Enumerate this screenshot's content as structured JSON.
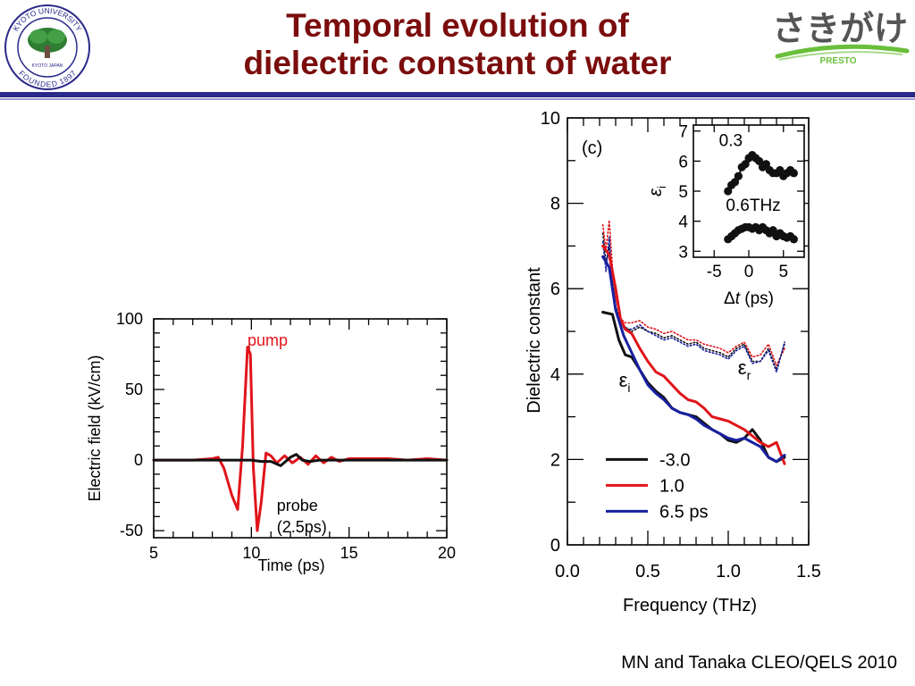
{
  "slide": {
    "title_line1": "Temporal evolution of",
    "title_line2": "dielectric constant of water",
    "citation": "MN and Tanaka CLEO/QELS 2010",
    "title_color": "#7b0d0d",
    "rule_color": "#2a2a8a"
  },
  "logos": {
    "left": {
      "icon": "kyoto-university-seal",
      "ring_text_top": "KYOTO UNIVERSITY",
      "ring_text_bottom": "FOUNDED 1897",
      "center_text": "KYOTO JAPAN",
      "color": "#2a2a8a"
    },
    "right": {
      "icon": "sakigake-presto-logo",
      "wordmark": "さきがけ",
      "tag": "PRESTO",
      "colors": [
        "#555555",
        "#6abf3a"
      ]
    }
  },
  "chart_data": [
    {
      "type": "line",
      "title": "",
      "xlabel": "Time (ps)",
      "ylabel": "Electric field (kV/cm)",
      "xlim": [
        5,
        20
      ],
      "ylim": [
        -55,
        100
      ],
      "xticks": [
        5,
        10,
        15,
        20
      ],
      "yticks": [
        100,
        50,
        0,
        -50
      ],
      "annotations": [
        "pump",
        "probe",
        "(2.5ps)"
      ],
      "series": [
        {
          "name": "pump",
          "color": "#e0141a",
          "x": [
            5.0,
            7.0,
            8.0,
            8.3,
            8.6,
            9.0,
            9.3,
            9.55,
            9.8,
            9.95,
            10.1,
            10.3,
            10.5,
            10.75,
            11.0,
            11.3,
            11.7,
            12.1,
            12.5,
            12.9,
            13.3,
            13.7,
            14.1,
            14.5,
            15.0,
            16.0,
            17.0,
            18.0,
            19.0,
            20.0
          ],
          "values": [
            0,
            0,
            1,
            2,
            -6,
            -25,
            -35,
            10,
            80,
            75,
            -5,
            -50,
            -30,
            5,
            3,
            -2,
            3,
            -2,
            2,
            -3,
            3,
            -2,
            2,
            -1,
            1,
            1,
            1,
            0,
            1,
            0
          ]
        },
        {
          "name": "probe",
          "color": "#111111",
          "x": [
            5.0,
            10.0,
            10.5,
            11.0,
            11.5,
            12.0,
            12.3,
            12.6,
            13.0,
            13.5,
            14.0,
            15.0,
            20.0
          ],
          "values": [
            0,
            0,
            -1,
            -1,
            -4,
            2,
            4,
            0,
            -1,
            0,
            0,
            0,
            0
          ]
        }
      ]
    },
    {
      "type": "line",
      "title": "",
      "panel_label": "(c)",
      "xlabel": "Frequency (THz)",
      "ylabel": "Dielectric constant",
      "xlim": [
        0.0,
        1.5
      ],
      "ylim": [
        0,
        10
      ],
      "xticks": [
        "0.0",
        "0.5",
        "1.0",
        "1.5"
      ],
      "yticks": [
        10,
        8,
        6,
        4,
        2,
        0
      ],
      "legend": {
        "placement": "bottom-left",
        "entries": [
          "-3.0",
          "1.0",
          "6.5 ps"
        ]
      },
      "annotations": {
        "eps_i": "ε",
        "eps_i_sub": "i",
        "eps_r": "ε",
        "eps_r_sub": "r"
      },
      "series": [
        {
          "name": "-3.0",
          "color": "#111111",
          "quantity": "eps_i",
          "x": [
            0.22,
            0.28,
            0.32,
            0.36,
            0.4,
            0.45,
            0.5,
            0.55,
            0.6,
            0.65,
            0.7,
            0.75,
            0.8,
            0.85,
            0.9,
            0.95,
            1.0,
            1.05,
            1.1,
            1.15,
            1.2,
            1.25,
            1.3,
            1.35
          ],
          "values": [
            5.45,
            5.4,
            4.8,
            4.45,
            4.4,
            4.1,
            3.8,
            3.6,
            3.45,
            3.2,
            3.1,
            3.05,
            3.0,
            2.85,
            2.7,
            2.6,
            2.45,
            2.4,
            2.5,
            2.7,
            2.45,
            2.05,
            1.95,
            2.05
          ]
        },
        {
          "name": "1.0",
          "color": "#e0141a",
          "quantity": "eps_i",
          "x": [
            0.22,
            0.26,
            0.3,
            0.33,
            0.36,
            0.4,
            0.45,
            0.5,
            0.55,
            0.6,
            0.65,
            0.7,
            0.75,
            0.8,
            0.85,
            0.9,
            0.95,
            1.0,
            1.05,
            1.1,
            1.15,
            1.2,
            1.25,
            1.3,
            1.35
          ],
          "values": [
            7.0,
            6.8,
            6.0,
            5.3,
            5.05,
            4.95,
            4.6,
            4.3,
            4.05,
            3.95,
            3.75,
            3.55,
            3.4,
            3.35,
            3.2,
            3.0,
            2.95,
            2.9,
            2.8,
            2.7,
            2.55,
            2.4,
            2.3,
            2.4,
            1.9
          ]
        },
        {
          "name": "6.5 ps",
          "color": "#1820a0",
          "quantity": "eps_i",
          "x": [
            0.22,
            0.26,
            0.3,
            0.35,
            0.4,
            0.45,
            0.5,
            0.55,
            0.6,
            0.65,
            0.7,
            0.75,
            0.8,
            0.85,
            0.9,
            0.95,
            1.0,
            1.05,
            1.1,
            1.15,
            1.2,
            1.25,
            1.3,
            1.35
          ],
          "values": [
            6.75,
            6.5,
            5.5,
            4.9,
            4.5,
            4.1,
            3.75,
            3.55,
            3.4,
            3.2,
            3.1,
            3.05,
            2.95,
            2.8,
            2.7,
            2.6,
            2.5,
            2.45,
            2.5,
            2.4,
            2.3,
            2.05,
            1.95,
            2.1
          ]
        },
        {
          "name": "-3.0",
          "color": "#111111",
          "quantity": "eps_r",
          "style": "dotted",
          "x": [
            0.22,
            0.24,
            0.26,
            0.28,
            0.3,
            0.33,
            0.36,
            0.4,
            0.45,
            0.5,
            0.55,
            0.6,
            0.65,
            0.7,
            0.75,
            0.8,
            0.85,
            0.9,
            0.95,
            1.0,
            1.05,
            1.1,
            1.15,
            1.2,
            1.25,
            1.3,
            1.35
          ],
          "values": [
            7.3,
            6.6,
            7.0,
            6.2,
            5.6,
            5.2,
            5.1,
            5.0,
            5.1,
            5.0,
            4.95,
            4.85,
            4.9,
            4.8,
            4.7,
            4.75,
            4.6,
            4.55,
            4.5,
            4.4,
            4.6,
            4.7,
            4.3,
            4.3,
            4.6,
            4.1,
            4.7
          ]
        },
        {
          "name": "1.0",
          "color": "#e0141a",
          "quantity": "eps_r",
          "style": "dotted",
          "x": [
            0.22,
            0.24,
            0.26,
            0.28,
            0.3,
            0.33,
            0.36,
            0.4,
            0.45,
            0.5,
            0.55,
            0.6,
            0.65,
            0.7,
            0.75,
            0.8,
            0.85,
            0.9,
            0.95,
            1.0,
            1.05,
            1.1,
            1.15,
            1.2,
            1.25,
            1.3,
            1.35
          ],
          "values": [
            7.5,
            6.9,
            7.6,
            6.5,
            5.8,
            5.3,
            5.2,
            5.2,
            5.25,
            5.1,
            5.05,
            4.95,
            5.0,
            4.9,
            4.8,
            4.8,
            4.7,
            4.65,
            4.6,
            4.5,
            4.65,
            4.75,
            4.4,
            4.45,
            4.7,
            4.2,
            4.6
          ]
        },
        {
          "name": "6.5 ps",
          "color": "#1820a0",
          "quantity": "eps_r",
          "style": "dotted",
          "x": [
            0.22,
            0.24,
            0.26,
            0.28,
            0.3,
            0.33,
            0.36,
            0.4,
            0.45,
            0.5,
            0.55,
            0.6,
            0.65,
            0.7,
            0.75,
            0.8,
            0.85,
            0.9,
            0.95,
            1.0,
            1.05,
            1.1,
            1.15,
            1.2,
            1.25,
            1.3,
            1.35
          ],
          "values": [
            7.1,
            6.4,
            7.2,
            6.0,
            5.5,
            5.15,
            5.05,
            5.05,
            5.15,
            5.0,
            4.9,
            4.8,
            4.85,
            4.75,
            4.65,
            4.7,
            4.55,
            4.5,
            4.45,
            4.35,
            4.55,
            4.65,
            4.25,
            4.3,
            4.55,
            4.05,
            4.75
          ]
        }
      ]
    },
    {
      "type": "scatter",
      "title": "",
      "xlabel": "Δt (ps)",
      "xlabel_delta": "Δ",
      "xlabel_var": "t",
      "xlabel_unit": " (ps)",
      "ylabel": "εi",
      "ylabel_eps": "ε",
      "ylabel_sub": "i",
      "xlim": [
        -8,
        8
      ],
      "ylim": [
        2.8,
        7.2
      ],
      "xticks": [
        "-5",
        "0",
        "5"
      ],
      "yticks": [
        7,
        6,
        5,
        4,
        3
      ],
      "series": [
        {
          "name": "0.3",
          "color": "#111111",
          "x": [
            -3.0,
            -2.5,
            -2.0,
            -1.5,
            -1.0,
            -0.5,
            0.0,
            0.5,
            1.0,
            1.5,
            2.0,
            2.5,
            3.0,
            3.5,
            4.0,
            4.5,
            5.0,
            5.5,
            6.0,
            6.5
          ],
          "values": [
            5.0,
            5.2,
            5.3,
            5.5,
            5.8,
            5.9,
            6.1,
            6.2,
            6.1,
            6.0,
            5.8,
            5.9,
            5.7,
            5.6,
            5.6,
            5.7,
            5.5,
            5.6,
            5.7,
            5.6
          ]
        },
        {
          "name": "0.6THz",
          "color": "#111111",
          "x": [
            -3.0,
            -2.5,
            -2.0,
            -1.5,
            -1.0,
            -0.5,
            0.0,
            0.5,
            1.0,
            1.5,
            2.0,
            2.5,
            3.0,
            3.5,
            4.0,
            4.5,
            5.0,
            5.5,
            6.0,
            6.5
          ],
          "values": [
            3.4,
            3.5,
            3.6,
            3.7,
            3.75,
            3.8,
            3.8,
            3.75,
            3.8,
            3.7,
            3.8,
            3.7,
            3.6,
            3.7,
            3.5,
            3.6,
            3.5,
            3.45,
            3.5,
            3.4
          ]
        }
      ]
    }
  ]
}
